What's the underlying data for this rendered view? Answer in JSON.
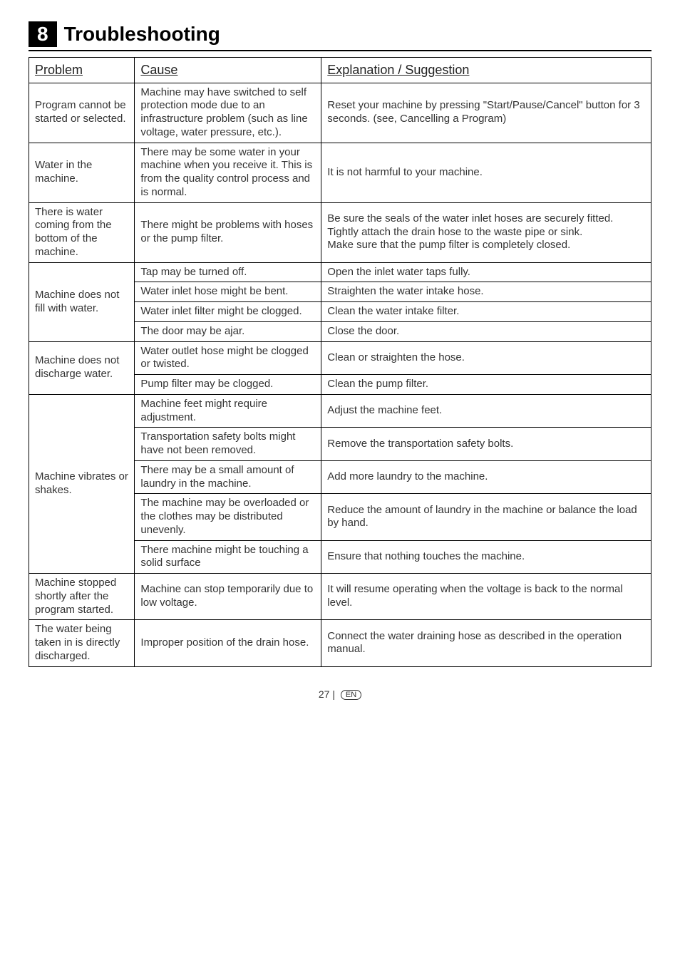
{
  "heading": {
    "number": "8",
    "title": "Troubleshooting"
  },
  "table": {
    "headers": {
      "problem": "Problem",
      "cause": "Cause",
      "explanation": "Explanation / Suggestion"
    },
    "rows": {
      "r1": {
        "problem": "Program cannot be started or selected.",
        "cause": "Machine may have switched to self protection mode due to an infrastructure problem (such as line voltage, water pressure, etc.).",
        "explanation": "Reset your machine by pressing \"Start/Pause/Cancel\" button for 3 seconds. (see, Cancelling a Program)"
      },
      "r2": {
        "problem": "Water in the machine.",
        "cause": "There may be some water in your machine when you receive it. This is from the quality control process and is normal.",
        "explanation": "It is not harmful to your machine."
      },
      "r3": {
        "problem": "There is water coming from the bottom of the machine.",
        "cause": "There might be problems with hoses or the pump filter.",
        "explanation": "Be sure the seals of the water inlet hoses are securely fitted.\nTightly attach the drain hose to the waste pipe or sink.\nMake sure that the pump filter is completely closed."
      },
      "r4_problem": "Machine does not fill with water.",
      "r4a": {
        "cause": "Tap may be turned off.",
        "explanation": "Open the inlet water taps fully."
      },
      "r4b": {
        "cause": "Water inlet hose might be bent.",
        "explanation": "Straighten the water intake hose."
      },
      "r4c": {
        "cause": "Water inlet filter might be clogged.",
        "explanation": "Clean the water intake filter."
      },
      "r4d": {
        "cause": "The door may be ajar.",
        "explanation": "Close the door."
      },
      "r5_problem": "Machine does not discharge water.",
      "r5a": {
        "cause": "Water outlet hose might be clogged or twisted.",
        "explanation": "Clean or straighten the hose."
      },
      "r5b": {
        "cause": "Pump filter may be clogged.",
        "explanation": "Clean the pump filter."
      },
      "r6_problem": "Machine vibrates or shakes.",
      "r6a": {
        "cause": "Machine feet might require adjustment.",
        "explanation": "Adjust the machine feet."
      },
      "r6b": {
        "cause": "Transportation safety bolts might have not been removed.",
        "explanation": "Remove the transportation safety bolts."
      },
      "r6c": {
        "cause": "There may be a small amount of laundry in the machine.",
        "explanation": "Add more laundry to the machine."
      },
      "r6d": {
        "cause": "The machine may be overloaded or the clothes may be distributed unevenly.",
        "explanation": "Reduce the amount of laundry in the machine or balance the load by hand."
      },
      "r6e": {
        "cause": "There machine might be touching a solid surface",
        "explanation": "Ensure that nothing touches the machine."
      },
      "r7": {
        "problem": "Machine stopped shortly after the program started.",
        "cause": "Machine can stop temporarily due to low voltage.",
        "explanation": "It will resume operating when the voltage is back to the normal level."
      },
      "r8": {
        "problem": "The water being taken in is directly discharged.",
        "cause": "Improper position of the drain hose.",
        "explanation": "Connect the water draining hose as described in the operation manual."
      }
    }
  },
  "footer": {
    "page": "27",
    "lang": "EN"
  }
}
